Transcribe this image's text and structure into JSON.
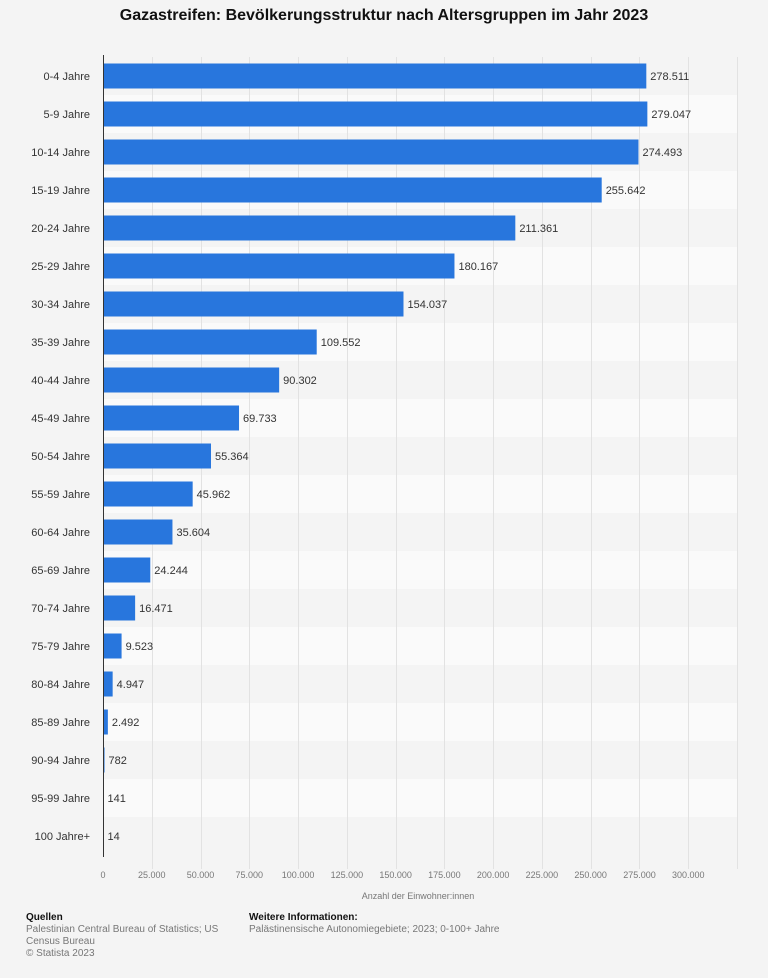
{
  "chart_data": {
    "type": "bar",
    "orientation": "horizontal",
    "title": "Gazastreifen: Bevölkerungsstruktur nach Altersgruppen im Jahr 2023",
    "xlabel": "Anzahl der Einwohner:innen",
    "ylabel": "",
    "xlim": [
      0,
      325000
    ],
    "x_ticks": [
      "0",
      "25.000",
      "50.000",
      "75.000",
      "100.000",
      "125.000",
      "150.000",
      "175.000",
      "200.000",
      "225.000",
      "250.000",
      "275.000",
      "300.000"
    ],
    "x_tick_values": [
      0,
      25000,
      50000,
      75000,
      100000,
      125000,
      150000,
      175000,
      200000,
      225000,
      250000,
      275000,
      300000
    ],
    "grid": true,
    "bar_color": "#2876dd",
    "categories": [
      "0-4 Jahre",
      "5-9 Jahre",
      "10-14 Jahre",
      "15-19 Jahre",
      "20-24 Jahre",
      "25-29 Jahre",
      "30-34 Jahre",
      "35-39 Jahre",
      "40-44 Jahre",
      "45-49 Jahre",
      "50-54 Jahre",
      "55-59 Jahre",
      "60-64 Jahre",
      "65-69 Jahre",
      "70-74 Jahre",
      "75-79 Jahre",
      "80-84 Jahre",
      "85-89 Jahre",
      "90-94 Jahre",
      "95-99 Jahre",
      "100 Jahre+"
    ],
    "values": [
      278511,
      279047,
      274493,
      255642,
      211361,
      180167,
      154037,
      109552,
      90302,
      69733,
      55364,
      45962,
      35604,
      24244,
      16471,
      9523,
      4947,
      2492,
      782,
      141,
      14
    ],
    "value_labels": [
      "278.511",
      "279.047",
      "274.493",
      "255.642",
      "211.361",
      "180.167",
      "154.037",
      "109.552",
      "90.302",
      "69.733",
      "55.364",
      "45.962",
      "35.604",
      "24.244",
      "16.471",
      "9.523",
      "4.947",
      "2.492",
      "782",
      "141",
      "14"
    ]
  },
  "footer": {
    "sources_heading": "Quellen",
    "sources_text": "Palestinian Central Bureau of Statistics; US Census Bureau",
    "copyright": "© Statista 2023",
    "info_heading": "Weitere Informationen:",
    "info_text": "Palästinensische Autonomiegebiete; 2023; 0-100+ Jahre"
  }
}
